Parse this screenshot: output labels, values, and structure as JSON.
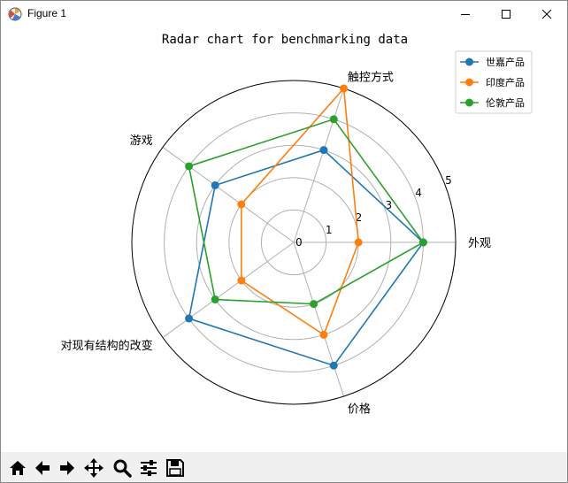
{
  "window": {
    "title": "Figure 1"
  },
  "toolbar": {
    "tools": [
      "home-icon",
      "back-arrow-icon",
      "forward-arrow-icon",
      "pan-move-icon",
      "zoom-magnifier-icon",
      "configure-subplots-icon",
      "save-disk-icon"
    ]
  },
  "colors": {
    "series": [
      "#1f77b4",
      "#ff7f0e",
      "#2ca02c"
    ]
  },
  "chart_data": {
    "type": "radar",
    "title": "Radar chart for benchmarking data",
    "categories": [
      "外观",
      "触控方式",
      "游戏",
      "对现有结构的改变",
      "价格"
    ],
    "radial_ticks": [
      "0",
      "1",
      "2",
      "3",
      "4",
      "5"
    ],
    "rlim": [
      0,
      5
    ],
    "grid": true,
    "legend_position": "top-right",
    "series": [
      {
        "name": "世嘉产品",
        "values": [
          4,
          3,
          3,
          4,
          4
        ]
      },
      {
        "name": "印度产品",
        "values": [
          2,
          5,
          2,
          2,
          3
        ]
      },
      {
        "name": "伦敦产品",
        "values": [
          4,
          4,
          4,
          3,
          2
        ]
      }
    ]
  }
}
